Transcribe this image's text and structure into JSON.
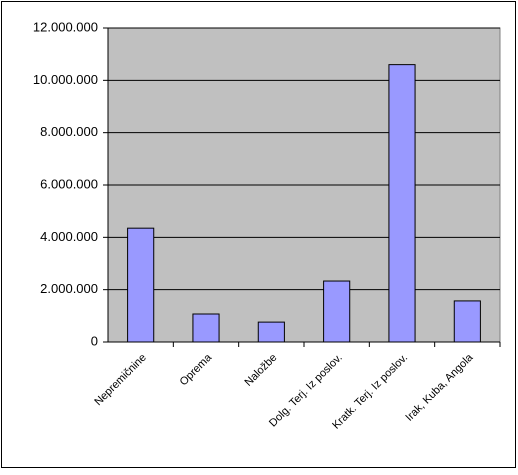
{
  "chart_data": {
    "type": "bar",
    "categories": [
      "Nepremičnine",
      "Oprema",
      "Naložbe",
      "Dolg. Terj. Iz poslov.",
      "Kratk. Terj. Iz poslov.",
      "Irak, Kuba, Angola"
    ],
    "values": [
      4350000,
      1070000,
      760000,
      2330000,
      10600000,
      1570000
    ],
    "color": "#9999ff",
    "ylim": [
      0,
      12000000
    ],
    "yticks": [
      0,
      {
        "value": 2000000,
        "label": "2.000.000"
      },
      {
        "value": 4000000,
        "label": "4.000.000"
      },
      {
        "value": 6000000,
        "label": "6.000.000"
      },
      {
        "value": 8000000,
        "label": "8.000.000"
      },
      {
        "value": 10000000,
        "label": "10.000.000"
      },
      {
        "value": 12000000,
        "label": "12.000.000"
      }
    ],
    "grid": true
  }
}
